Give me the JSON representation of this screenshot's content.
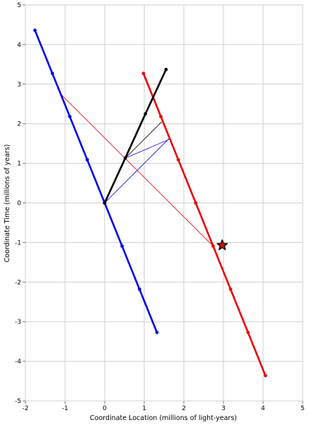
{
  "chart_data": {
    "type": "line",
    "title": "",
    "xlabel": "Coordinate Location (millions of light-years)",
    "ylabel": "Coordinate Time (millions of years)",
    "xlim": [
      -2,
      5
    ],
    "ylim": [
      -5,
      5
    ],
    "xticks": [
      "-2",
      "-1",
      "0",
      "1",
      "2",
      "3",
      "4",
      "5"
    ],
    "yticks": [
      "-5",
      "-4",
      "-3",
      "-2",
      "-1",
      "0",
      "1",
      "2",
      "3",
      "4",
      "5"
    ],
    "grid": true,
    "legend": "none",
    "series": [
      {
        "color": "#0000ee",
        "marker": "dot",
        "points": [
          [
            -1.76,
            4.36
          ],
          [
            -1.32,
            3.27
          ],
          [
            -0.88,
            2.18
          ],
          [
            -0.44,
            1.09
          ],
          [
            0.0,
            0.0
          ],
          [
            0.44,
            -1.09
          ],
          [
            0.88,
            -2.18
          ],
          [
            1.32,
            -3.27
          ]
        ]
      },
      {
        "color": "#ee0000",
        "marker": "dot",
        "points": [
          [
            0.98,
            3.27
          ],
          [
            1.42,
            2.18
          ],
          [
            1.86,
            1.09
          ],
          [
            2.3,
            0.0
          ],
          [
            2.74,
            -1.09
          ],
          [
            3.18,
            -2.18
          ],
          [
            3.62,
            -3.27
          ],
          [
            4.06,
            -4.36
          ]
        ]
      },
      {
        "color": "#000000",
        "marker": "dot",
        "points": [
          [
            0.0,
            0.0
          ],
          [
            0.52,
            1.13
          ],
          [
            1.03,
            2.25
          ],
          [
            1.55,
            3.37
          ]
        ]
      }
    ],
    "thin_lines": [
      {
        "color": "#ee0000",
        "points": [
          [
            -1.08,
            2.72
          ],
          [
            2.74,
            -1.09
          ]
        ]
      },
      {
        "color": "#0000ee",
        "points": [
          [
            0.0,
            0.0
          ],
          [
            1.62,
            1.62
          ]
        ]
      },
      {
        "color": "#0000ee",
        "points": [
          [
            0.52,
            1.13
          ],
          [
            1.66,
            1.62
          ]
        ]
      },
      {
        "color": "#000000",
        "points": [
          [
            0.0,
            0.0
          ],
          [
            0.52,
            1.13
          ]
        ]
      },
      {
        "color": "#000000",
        "points": [
          [
            0.52,
            1.13
          ],
          [
            1.44,
            2.05
          ]
        ]
      }
    ],
    "annotations": [
      {
        "type": "star",
        "point": [
          2.97,
          -1.07
        ],
        "color": "#ee0000"
      }
    ]
  }
}
